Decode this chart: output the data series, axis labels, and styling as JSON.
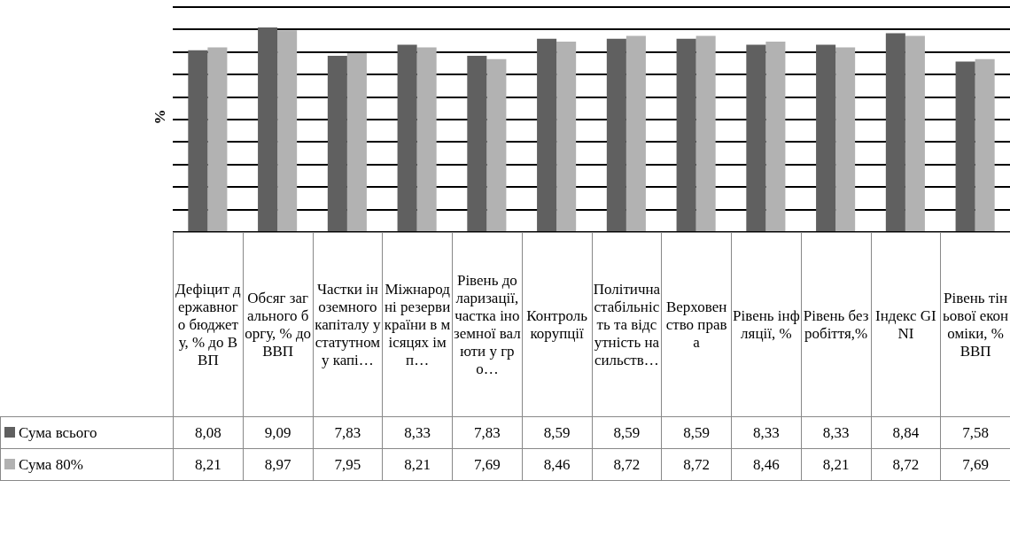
{
  "chart_data": {
    "type": "bar",
    "ylabel": "%",
    "categories": [
      "Дефіцит державного бюджету, % до ВВП",
      "Обсяг загального боргу, % до ВВП",
      "Частки іноземного капіталу у статутному капі…",
      "Міжнародні резерви країни в місяцях імп…",
      "Рівень доларизації, частка іноземної валюти у гро…",
      "Контроль корупції",
      "Політична стабільність та відсутність насильств…",
      "Верховенство права",
      "Рівень інфляції, %",
      "Рівень безробіття,%",
      "Індекс GINI",
      "Рівень тіньової економіки, % ВВП"
    ],
    "series": [
      {
        "name": "Сума всього",
        "color": "#606060",
        "values": [
          8.08,
          9.09,
          7.83,
          8.33,
          7.83,
          8.59,
          8.59,
          8.59,
          8.33,
          8.33,
          8.84,
          7.58
        ],
        "value_labels": [
          "8,08",
          "9,09",
          "7,83",
          "8,33",
          "7,83",
          "8,59",
          "8,59",
          "8,59",
          "8,33",
          "8,33",
          "8,84",
          "7,58"
        ]
      },
      {
        "name": "Сума 80%",
        "color": "#b2b2b2",
        "values": [
          8.21,
          8.97,
          7.95,
          8.21,
          7.69,
          8.46,
          8.72,
          8.72,
          8.46,
          8.21,
          8.72,
          7.69
        ],
        "value_labels": [
          "8,21",
          "8,97",
          "7,95",
          "8,21",
          "7,69",
          "8,46",
          "8,72",
          "8,72",
          "8,46",
          "8,21",
          "8,72",
          "7,69"
        ]
      }
    ],
    "grid": "y",
    "legend": "bottom"
  }
}
